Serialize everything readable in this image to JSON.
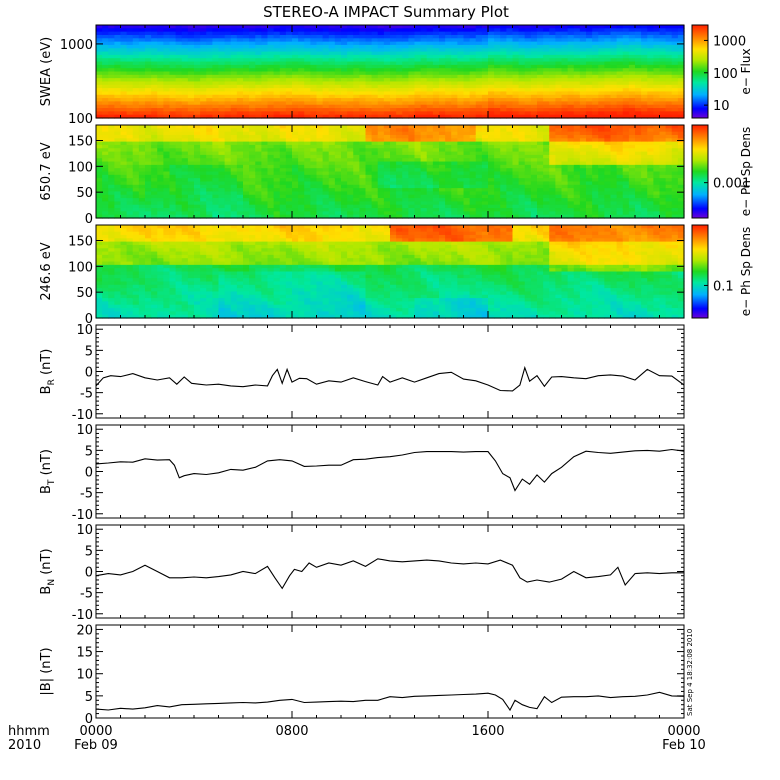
{
  "title": "STEREO-A IMPACT Summary Plot",
  "footer": {
    "hhmm_label": "hhmm",
    "year_label": "2010",
    "stamp": "Sat Sep  4 18:32:08 2010"
  },
  "xaxis": {
    "ticks": [
      {
        "hour": 0,
        "top": "0000",
        "bottom": "Feb 09"
      },
      {
        "hour": 8,
        "top": "0800",
        "bottom": ""
      },
      {
        "hour": 16,
        "top": "1600",
        "bottom": ""
      },
      {
        "hour": 24,
        "top": "0000",
        "bottom": "Feb 10"
      }
    ],
    "range_hours": [
      0,
      24
    ]
  },
  "colors": {
    "colorbar": [
      "#6a00d8",
      "#0000ff",
      "#00b0ff",
      "#00e8a0",
      "#20d820",
      "#b0e800",
      "#ffe000",
      "#ff8000",
      "#ff2000"
    ]
  },
  "chart_data": [
    {
      "type": "heatmap",
      "ylabel": "SWEA (eV)",
      "yscale": "log",
      "ylim": [
        100,
        1800
      ],
      "yticks": [
        {
          "v": 100,
          "label": "100"
        },
        {
          "v": 1000,
          "label": "1000"
        }
      ],
      "colorbar_label": "e− Flux",
      "colorbar_ticks": [
        {
          "v": 10,
          "label": "10"
        },
        {
          "v": 100,
          "label": "100"
        },
        {
          "v": 1000,
          "label": "1000"
        }
      ],
      "colorbar_scale": "log",
      "colorbar_range": [
        4,
        3000
      ]
    },
    {
      "type": "heatmap",
      "ylabel": "650.7 eV",
      "ylim": [
        0,
        180
      ],
      "yticks": [
        {
          "v": 0,
          "label": "0"
        },
        {
          "v": 50,
          "label": "50"
        },
        {
          "v": 100,
          "label": "100"
        },
        {
          "v": 150,
          "label": "150"
        }
      ],
      "colorbar_label": "e− Ph Sp Dens",
      "colorbar_ticks": [
        {
          "frac": 0.38,
          "label": "0.001"
        }
      ]
    },
    {
      "type": "heatmap",
      "ylabel": "246.6 eV",
      "ylim": [
        0,
        180
      ],
      "yticks": [
        {
          "v": 0,
          "label": "0"
        },
        {
          "v": 50,
          "label": "50"
        },
        {
          "v": 100,
          "label": "100"
        },
        {
          "v": 150,
          "label": "150"
        }
      ],
      "colorbar_label": "e− Ph Sp Dens",
      "colorbar_ticks": [
        {
          "frac": 0.35,
          "label": "0.1"
        }
      ]
    },
    {
      "type": "line",
      "ylabel": "B",
      "ylabel_sub": "R",
      "ylabel_unit": "(nT)",
      "ylim": [
        -11,
        11
      ],
      "yticks": [
        -10,
        -5,
        0,
        5,
        10
      ],
      "series": [
        {
          "x": [
            0,
            0.3,
            0.6,
            1,
            1.5,
            2,
            2.5,
            3,
            3.3,
            3.6,
            3.9,
            4.2,
            4.5,
            5,
            5.5,
            6,
            6.5,
            7,
            7.2,
            7.4,
            7.6,
            7.8,
            8,
            8.3,
            8.6,
            9,
            9.5,
            10,
            10.5,
            11,
            11.5,
            11.7,
            12,
            12.5,
            13,
            13.5,
            14,
            14.5,
            15,
            15.5,
            16,
            16.5,
            17,
            17.3,
            17.5,
            17.7,
            18,
            18.3,
            18.6,
            19,
            19.5,
            20,
            20.5,
            21,
            21.5,
            22,
            22.5,
            23,
            23.5,
            24
          ],
          "y": [
            -3.4,
            -1.5,
            -1,
            -1.2,
            -0.5,
            -1.5,
            -2,
            -1.5,
            -3,
            -1.3,
            -2.8,
            -3,
            -3.2,
            -3,
            -3.4,
            -3.6,
            -3.2,
            -3.4,
            -1,
            0.5,
            -2.8,
            0.5,
            -2.5,
            -1.6,
            -1.7,
            -3,
            -2.2,
            -2.5,
            -1.5,
            -2.4,
            -3.2,
            -1.2,
            -2.5,
            -1.5,
            -2.5,
            -1.5,
            -0.5,
            -0.2,
            -1.8,
            -2.2,
            -3.2,
            -4.5,
            -4.6,
            -3.2,
            0.9,
            -2.3,
            -1,
            -3.5,
            -1.3,
            -1.2,
            -1.5,
            -1.7,
            -1,
            -0.8,
            -1.1,
            -2,
            0.5,
            -1,
            -1.1,
            -3.2
          ]
        }
      ]
    },
    {
      "type": "line",
      "ylabel": "B",
      "ylabel_sub": "T",
      "ylabel_unit": "(nT)",
      "ylim": [
        -11,
        11
      ],
      "yticks": [
        -10,
        -5,
        0,
        5,
        10
      ],
      "series": [
        {
          "x": [
            0,
            0.5,
            1,
            1.5,
            2,
            2.5,
            3,
            3.2,
            3.4,
            3.6,
            4,
            4.5,
            5,
            5.5,
            6,
            6.5,
            7,
            7.5,
            8,
            8.5,
            9,
            9.5,
            10,
            10.5,
            11,
            11.5,
            12,
            12.5,
            13,
            13.5,
            14,
            14.5,
            15,
            15.5,
            16,
            16.3,
            16.6,
            16.9,
            17.1,
            17.4,
            17.7,
            18,
            18.3,
            18.6,
            19,
            19.5,
            20,
            20.5,
            21,
            21.5,
            22,
            22.5,
            23,
            23.5,
            24
          ],
          "y": [
            1.8,
            2,
            2.3,
            2.2,
            3,
            2.7,
            2.8,
            1.5,
            -1.5,
            -1,
            -0.5,
            -0.7,
            -0.3,
            0.5,
            0.3,
            1,
            2.5,
            2.8,
            2.5,
            1.2,
            1.3,
            1.5,
            1.5,
            2.8,
            2.9,
            3.3,
            3.5,
            3.9,
            4.5,
            4.7,
            4.7,
            4.7,
            4.6,
            4.7,
            4.7,
            2.5,
            -0.5,
            -1.5,
            -4.5,
            -1.8,
            -3,
            -0.8,
            -2.5,
            -0.5,
            1,
            3.5,
            4.8,
            4.5,
            4.3,
            4.6,
            4.9,
            5,
            4.8,
            5.2,
            4.8
          ]
        }
      ]
    },
    {
      "type": "line",
      "ylabel": "B",
      "ylabel_sub": "N",
      "ylabel_unit": "(nT)",
      "ylim": [
        -11,
        11
      ],
      "yticks": [
        -10,
        -5,
        0,
        5,
        10
      ],
      "series": [
        {
          "x": [
            0,
            0.5,
            1,
            1.5,
            2,
            2.5,
            3,
            3.5,
            4,
            4.5,
            5,
            5.5,
            6,
            6.5,
            7,
            7.3,
            7.6,
            7.9,
            8.1,
            8.4,
            8.7,
            9,
            9.5,
            10,
            10.5,
            11,
            11.5,
            12,
            12.5,
            13,
            13.5,
            14,
            14.5,
            15,
            15.5,
            16,
            16.5,
            17,
            17.3,
            17.6,
            18,
            18.5,
            19,
            19.5,
            20,
            20.5,
            21,
            21.3,
            21.6,
            22,
            22.5,
            23,
            23.5,
            24
          ],
          "y": [
            -1,
            -0.5,
            -0.8,
            0,
            1.5,
            0,
            -1.5,
            -1.5,
            -1.3,
            -1.5,
            -1.2,
            -0.8,
            0,
            -0.5,
            1.2,
            -1.5,
            -4,
            -1,
            0.5,
            0,
            2,
            1,
            2,
            1.5,
            2.5,
            1.2,
            3,
            2.5,
            2.3,
            2.5,
            2.7,
            2.5,
            2,
            1.8,
            2,
            1.8,
            2.7,
            1.5,
            -1.5,
            -2.5,
            -2,
            -2.5,
            -1.8,
            0,
            -1.5,
            -1.2,
            -0.8,
            1,
            -3.2,
            -0.5,
            -0.3,
            -0.5,
            -0.3,
            -0.3
          ]
        }
      ]
    },
    {
      "type": "line",
      "ylabel": "|B|",
      "ylabel_unit": "(nT)",
      "ylim": [
        0,
        21
      ],
      "yticks": [
        0,
        5,
        10,
        15,
        20
      ],
      "series": [
        {
          "x": [
            0,
            0.5,
            1,
            1.5,
            2,
            2.5,
            3,
            3.5,
            4,
            4.5,
            5,
            5.5,
            6,
            6.5,
            7,
            7.5,
            8,
            8.5,
            9,
            9.5,
            10,
            10.5,
            11,
            11.5,
            12,
            12.5,
            13,
            13.5,
            14,
            14.5,
            15,
            15.5,
            16,
            16.3,
            16.6,
            16.9,
            17.1,
            17.4,
            17.7,
            18,
            18.3,
            18.6,
            19,
            19.5,
            20,
            20.5,
            21,
            21.5,
            22,
            22.5,
            23,
            23.5,
            24
          ],
          "y": [
            2,
            1.8,
            2.2,
            2,
            2.3,
            2.8,
            2.5,
            3,
            3.1,
            3.2,
            3.3,
            3.4,
            3.5,
            3.4,
            3.6,
            4,
            4.2,
            3.5,
            3.6,
            3.7,
            3.8,
            3.7,
            4,
            4,
            4.8,
            4.6,
            4.9,
            5,
            5.1,
            5.2,
            5.3,
            5.4,
            5.6,
            5.2,
            4.2,
            1.8,
            4,
            3,
            2.4,
            2.1,
            4.8,
            3.5,
            4.7,
            4.8,
            4.8,
            5,
            4.6,
            4.8,
            4.9,
            5.2,
            5.8,
            5,
            4.9
          ]
        }
      ]
    }
  ]
}
